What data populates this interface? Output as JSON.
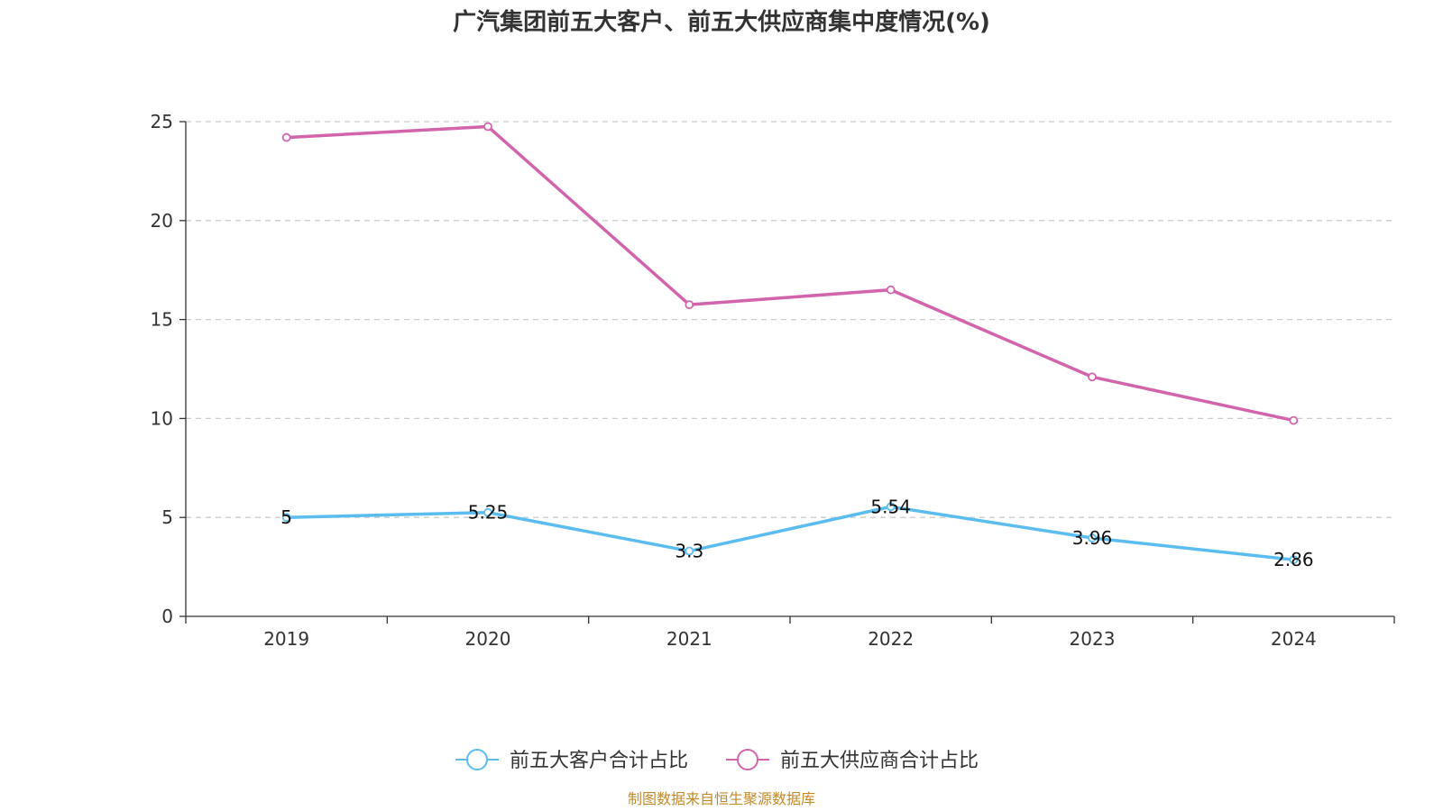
{
  "chart_data": {
    "type": "line",
    "title": "广汽集团前五大客户、前五大供应商集中度情况(%)",
    "categories": [
      "2019",
      "2020",
      "2021",
      "2022",
      "2023",
      "2024"
    ],
    "series": [
      {
        "name": "前五大客户合计占比",
        "color": "#5bbcf0",
        "values": [
          5,
          5.25,
          3.3,
          5.54,
          3.96,
          2.86
        ],
        "show_labels": true
      },
      {
        "name": "前五大供应商合计占比",
        "color": "#d264ac",
        "values": [
          24.2,
          24.75,
          15.75,
          16.5,
          12.1,
          9.9
        ],
        "show_labels": false
      }
    ],
    "y_ticks": [
      "0",
      "5",
      "10",
      "15",
      "20",
      "25"
    ],
    "ylim": [
      0,
      25
    ],
    "grid": true,
    "legend_position": "bottom"
  },
  "source_text": "制图数据来自恒生聚源数据库"
}
